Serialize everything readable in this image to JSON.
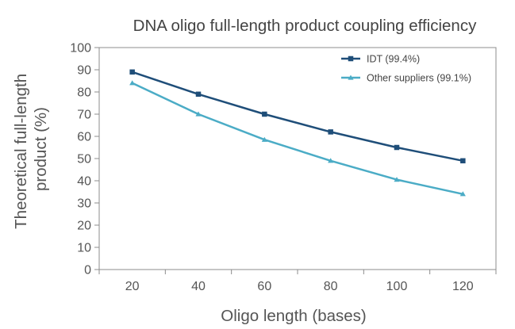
{
  "chart_data": {
    "type": "line",
    "title": "DNA oligo full-length product coupling efficiency",
    "xlabel": "Oligo length (bases)",
    "ylabel_lines": [
      "Theoretical full-length",
      "product (%)"
    ],
    "x": [
      20,
      40,
      60,
      80,
      100,
      120
    ],
    "x_tick_labels": [
      "20",
      "40",
      "60",
      "80",
      "100",
      "120"
    ],
    "ylim": [
      0,
      100
    ],
    "y_ticks": [
      0,
      10,
      20,
      30,
      40,
      50,
      60,
      70,
      80,
      90,
      100
    ],
    "grid": false,
    "legend_position": "top-right",
    "series": [
      {
        "name": "IDT (99.4%)",
        "color": "#1f4e79",
        "marker": "square",
        "values": [
          89,
          79,
          70,
          62,
          55,
          49
        ]
      },
      {
        "name": "Other suppliers (99.1%)",
        "color": "#4bacc6",
        "marker": "triangle",
        "values": [
          84,
          70,
          58.5,
          49,
          40.5,
          34
        ]
      }
    ]
  }
}
